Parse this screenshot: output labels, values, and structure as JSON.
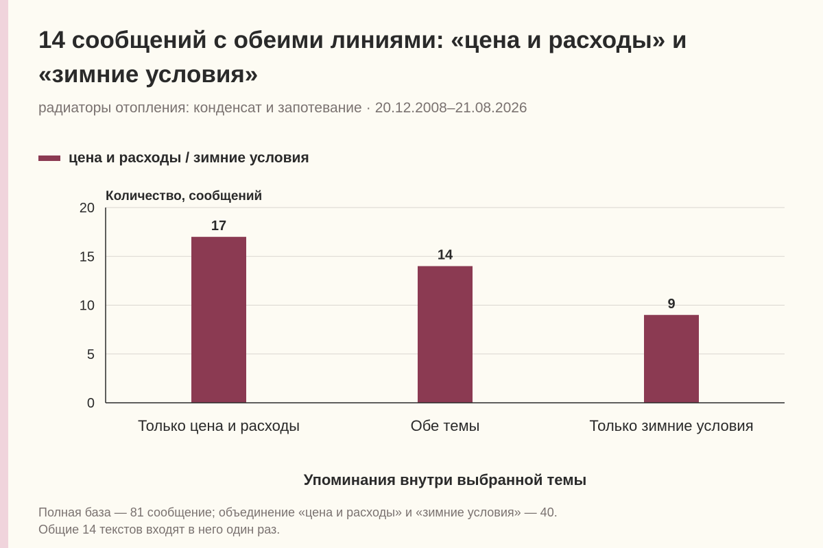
{
  "title": "14 сообщений с обеими линиями: «цена и расходы» и «зимние условия»",
  "subtitle": {
    "topic": "радиаторы отопления: конденсат и запотевание",
    "separator": "·",
    "period": "20.12.2008–21.08.2026"
  },
  "colors": {
    "bar": "#8b3a52",
    "accent_strip": "#f0d4dc"
  },
  "footer": {
    "line1": "Полная база — 81 сообщение; объединение «цена и расходы» и «зимние условия» — 40.",
    "line2": "Общие 14 текстов входят в него один раз."
  },
  "chart_data": {
    "type": "bar",
    "categories": [
      "Только цена и расходы",
      "Обе темы",
      "Только зимние условия"
    ],
    "series": [
      {
        "name": "цена и расходы / зимние условия",
        "values": [
          17,
          14,
          9
        ]
      }
    ],
    "ylabel": "Количество, сообщений",
    "xlabel": "Упоминания внутри выбранной темы",
    "ylim": [
      0,
      20
    ],
    "yticks": [
      0,
      5,
      10,
      15,
      20
    ],
    "data_labels": [
      "17",
      "14",
      "9"
    ],
    "grid": true,
    "legend": "top-left"
  }
}
